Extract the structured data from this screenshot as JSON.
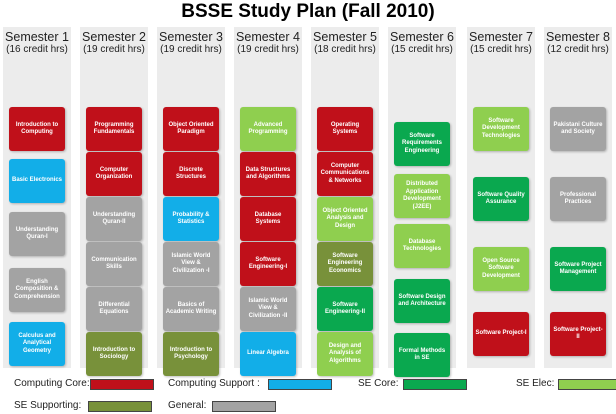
{
  "title": "BSSE Study Plan (Fall 2010)",
  "colors": {
    "computing_core": "#c0101a",
    "computing_support": "#12aee8",
    "se_core": "#0aa84f",
    "se_elec": "#8fcf4f",
    "se_supporting": "#78913a",
    "general": "#a3a3a3"
  },
  "semesters": [
    {
      "title": "Semester 1",
      "credits": "(16 credit hrs)",
      "courses": [
        {
          "name": "Introduction to Computing",
          "category": "computing_core"
        },
        {
          "name": "Basic Electronics",
          "category": "computing_support"
        },
        {
          "name": "Understanding Quran-I",
          "category": "general"
        },
        {
          "name": "English Composition & Comprehension",
          "category": "general"
        },
        {
          "name": "Calculus and Analytical Geometry",
          "category": "computing_support"
        }
      ]
    },
    {
      "title": "Semester 2",
      "credits": "(19 credit hrs)",
      "courses": [
        {
          "name": "Programming Fundamentals",
          "category": "computing_core"
        },
        {
          "name": "Computer Organization",
          "category": "computing_core"
        },
        {
          "name": "Understanding Quran-II",
          "category": "general"
        },
        {
          "name": "Communication Skills",
          "category": "general"
        },
        {
          "name": "Differential Equations",
          "category": "general"
        },
        {
          "name": "Introduction to Sociology",
          "category": "se_supporting"
        }
      ]
    },
    {
      "title": "Semester 3",
      "credits": "(19 credit hrs)",
      "courses": [
        {
          "name": "Object Oriented Paradigm",
          "category": "computing_core"
        },
        {
          "name": "Discrete Structures",
          "category": "computing_core"
        },
        {
          "name": "Probability & Statistics",
          "category": "computing_support"
        },
        {
          "name": "Islamic World View & Civilization -I",
          "category": "general"
        },
        {
          "name": "Basics of Academic Writing",
          "category": "general"
        },
        {
          "name": "Introduction to Psychology",
          "category": "se_supporting"
        }
      ]
    },
    {
      "title": "Semester 4",
      "credits": "(19 credit hrs)",
      "courses": [
        {
          "name": "Advanced Programming",
          "category": "se_elec"
        },
        {
          "name": "Data Structures and Algorithms",
          "category": "computing_core"
        },
        {
          "name": "Database Systems",
          "category": "computing_core"
        },
        {
          "name": "Software Engineering-I",
          "category": "computing_core"
        },
        {
          "name": "Islamic World View & Civilization -II",
          "category": "general"
        },
        {
          "name": "Linear Algebra",
          "category": "computing_support"
        }
      ]
    },
    {
      "title": "Semester 5",
      "credits": "(18 credit hrs)",
      "courses": [
        {
          "name": "Operating Systems",
          "category": "computing_core"
        },
        {
          "name": "Computer Communications & Networks",
          "category": "computing_core"
        },
        {
          "name": "Object Oriented Analysis and Design",
          "category": "se_elec"
        },
        {
          "name": "Software Engineering Economics",
          "category": "se_supporting"
        },
        {
          "name": "Software Engineering-II",
          "category": "se_core"
        },
        {
          "name": "Design and Analysis of Algorithms",
          "category": "se_elec"
        }
      ]
    },
    {
      "title": "Semester 6",
      "credits": "(15 credit hrs)",
      "courses": [
        {
          "name": "Software Requirements Engineering",
          "category": "se_core"
        },
        {
          "name": "Distributed Application Development (J2EE)",
          "category": "se_elec"
        },
        {
          "name": "Database Technologies",
          "category": "se_elec"
        },
        {
          "name": "Software Design and Architecture",
          "category": "se_core"
        },
        {
          "name": "Formal Methods in SE",
          "category": "se_core"
        }
      ]
    },
    {
      "title": "Semester 7",
      "credits": "(15 credit hrs)",
      "courses": [
        {
          "name": "Software Development Technologies",
          "category": "se_elec"
        },
        {
          "name": "Software Quality Assurance",
          "category": "se_core"
        },
        {
          "name": "Open Source Software Development",
          "category": "se_elec"
        },
        {
          "name": "Software Project-I",
          "category": "computing_core"
        }
      ]
    },
    {
      "title": "Semester 8",
      "credits": "(12 credit hrs)",
      "courses": [
        {
          "name": "Pakistani Culture and Society",
          "category": "general"
        },
        {
          "name": "Professional Practices",
          "category": "general"
        },
        {
          "name": "Software Project Management",
          "category": "se_core"
        },
        {
          "name": "Software Project-II",
          "category": "computing_core"
        }
      ]
    }
  ],
  "legend": [
    {
      "label": "Computing Core:",
      "category": "computing_core"
    },
    {
      "label": "Computing Support :",
      "category": "computing_support"
    },
    {
      "label": "SE Core:",
      "category": "se_core"
    },
    {
      "label": "SE Elec:",
      "category": "se_elec"
    },
    {
      "label": "SE Supporting:",
      "category": "se_supporting"
    },
    {
      "label": "General:",
      "category": "general"
    }
  ]
}
